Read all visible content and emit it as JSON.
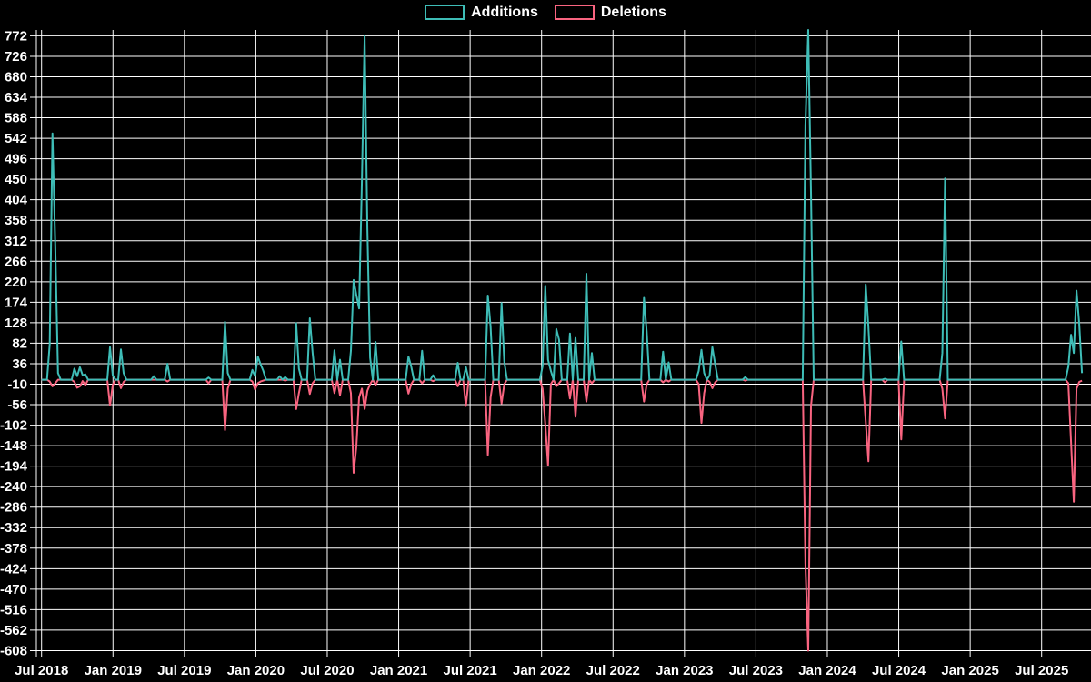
{
  "legend": {
    "additions_label": "Additions",
    "deletions_label": "Deletions"
  },
  "colors": {
    "background": "#000000",
    "grid": "#FFFFFF",
    "text": "#FFFFFF",
    "additions": "#3EBDB7",
    "deletions": "#F96480"
  },
  "chart_data": {
    "type": "line",
    "title": "",
    "legend_position": "top-center",
    "grid": true,
    "series_names": [
      "Additions",
      "Deletions"
    ],
    "y_axis": {
      "min": -608,
      "max": 772,
      "tick_step": 46,
      "ticks": [
        772,
        726,
        680,
        634,
        588,
        542,
        496,
        450,
        404,
        358,
        312,
        266,
        220,
        174,
        128,
        82,
        36,
        -10,
        -56,
        -102,
        -148,
        -194,
        -240,
        -286,
        -332,
        -378,
        -424,
        -470,
        -516,
        -562,
        -608
      ]
    },
    "x_axis": {
      "unit": "weeks",
      "start": "Jul 2018",
      "end": "Oct 2025",
      "weeks_total": 381,
      "weeks_per_gridline": 26.0893,
      "tick_labels": [
        "Jul 2018",
        "Jan 2019",
        "Jul 2019",
        "Jan 2020",
        "Jul 2020",
        "Jan 2021",
        "Jul 2021",
        "Jan 2022",
        "Jul 2022",
        "Jan 2023",
        "Jul 2023",
        "Jan 2024",
        "Jul 2024",
        "Jan 2025",
        "Jul 2025"
      ]
    },
    "points_format": [
      "week_index_from_jul_2018",
      "additions",
      "deletions"
    ],
    "points_note": "weeks not listed have additions=0 and deletions=0",
    "points": [
      [
        3,
        80,
        -4
      ],
      [
        4,
        553,
        -15
      ],
      [
        5,
        300,
        -8
      ],
      [
        6,
        15,
        0
      ],
      [
        12,
        25,
        -5
      ],
      [
        13,
        8,
        -18
      ],
      [
        14,
        28,
        -15
      ],
      [
        15,
        10,
        -3
      ],
      [
        16,
        12,
        -12
      ],
      [
        25,
        73,
        -58
      ],
      [
        26,
        10,
        -12
      ],
      [
        29,
        68,
        -19
      ],
      [
        30,
        15,
        -5
      ],
      [
        41,
        8,
        0
      ],
      [
        46,
        36,
        -4
      ],
      [
        61,
        5,
        -8
      ],
      [
        67,
        130,
        -113
      ],
      [
        68,
        15,
        -20
      ],
      [
        77,
        22,
        -4
      ],
      [
        78,
        8,
        -22
      ],
      [
        79,
        52,
        -8
      ],
      [
        80,
        35,
        -4
      ],
      [
        81,
        20,
        -2
      ],
      [
        87,
        8,
        0
      ],
      [
        89,
        6,
        -2
      ],
      [
        93,
        127,
        -66
      ],
      [
        94,
        25,
        -30
      ],
      [
        98,
        138,
        -32
      ],
      [
        99,
        60,
        -8
      ],
      [
        107,
        66,
        -30
      ],
      [
        109,
        45,
        -35
      ],
      [
        113,
        65,
        -30
      ],
      [
        114,
        224,
        -209
      ],
      [
        115,
        190,
        -150
      ],
      [
        116,
        160,
        -40
      ],
      [
        117,
        448,
        -20
      ],
      [
        118,
        772,
        -66
      ],
      [
        119,
        339,
        -25
      ],
      [
        120,
        50,
        -10
      ],
      [
        122,
        85,
        -12
      ],
      [
        134,
        52,
        -31
      ],
      [
        135,
        30,
        -10
      ],
      [
        139,
        65,
        -8
      ],
      [
        143,
        10,
        -3
      ],
      [
        152,
        38,
        -15
      ],
      [
        155,
        28,
        -59
      ],
      [
        163,
        189,
        -169
      ],
      [
        164,
        120,
        -40
      ],
      [
        168,
        172,
        -53
      ],
      [
        169,
        40,
        -10
      ],
      [
        183,
        30,
        -20
      ],
      [
        184,
        211,
        -100
      ],
      [
        185,
        45,
        -192
      ],
      [
        186,
        20,
        -10
      ],
      [
        188,
        114,
        -15
      ],
      [
        189,
        90,
        -8
      ],
      [
        193,
        104,
        -42
      ],
      [
        195,
        94,
        -83
      ],
      [
        199,
        238,
        -49
      ],
      [
        201,
        60,
        -8
      ],
      [
        220,
        184,
        -49
      ],
      [
        221,
        108,
        -10
      ],
      [
        227,
        63,
        -6
      ],
      [
        229,
        39,
        -4
      ],
      [
        240,
        20,
        -10
      ],
      [
        241,
        67,
        -97
      ],
      [
        242,
        15,
        -30
      ],
      [
        244,
        10,
        -5
      ],
      [
        245,
        73,
        -19
      ],
      [
        246,
        35,
        -6
      ],
      [
        257,
        6,
        -2
      ],
      [
        279,
        571,
        -414
      ],
      [
        280,
        785,
        -608
      ],
      [
        281,
        421,
        -59
      ],
      [
        301,
        214,
        -93
      ],
      [
        302,
        118,
        -183
      ],
      [
        308,
        2,
        -6
      ],
      [
        314,
        86,
        -134
      ],
      [
        329,
        60,
        -20
      ],
      [
        330,
        452,
        -87
      ],
      [
        375,
        29,
        -8
      ],
      [
        376,
        101,
        -141
      ],
      [
        377,
        60,
        -274
      ],
      [
        378,
        200,
        -20
      ],
      [
        379,
        125,
        -5
      ],
      [
        380,
        15,
        -2
      ]
    ]
  }
}
